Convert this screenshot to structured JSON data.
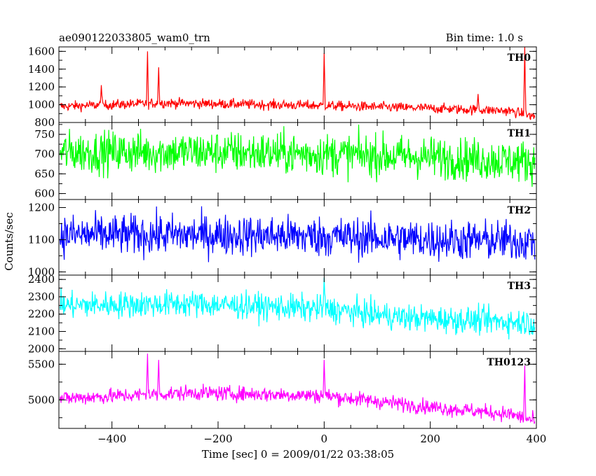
{
  "header": {
    "left_title": "ae090122033805_wam0_trn",
    "right_title": "Bin time: 1.0 s"
  },
  "ylabel": "Counts/sec",
  "xlabel": "Time [sec] 0 = 2009/01/22 03:38:05",
  "chart_data": {
    "type": "line",
    "x_range": [
      -500,
      400
    ],
    "bin_time_s": 1.0,
    "xticks": [
      -400,
      -200,
      0,
      200,
      400
    ],
    "xtick_labels": [
      "−400",
      "−200",
      "0",
      "200",
      "400"
    ],
    "panels": [
      {
        "label": "TH0",
        "color": "#ff0000",
        "ylim": [
          800,
          1650
        ],
        "yticks": [
          800,
          1000,
          1200,
          1400,
          1600
        ],
        "ytick_labels": [
          "800",
          "1000",
          "1200",
          "1400",
          "1600"
        ],
        "trend": [
          [
            -500,
            980
          ],
          [
            -300,
            1020
          ],
          [
            -100,
            1000
          ],
          [
            0,
            990
          ],
          [
            200,
            960
          ],
          [
            350,
            930
          ],
          [
            400,
            860
          ]
        ],
        "noise": 40,
        "spikes": [
          [
            -420,
            1220
          ],
          [
            -333,
            1600
          ],
          [
            -312,
            1420
          ],
          [
            0,
            1580
          ],
          [
            290,
            1120
          ],
          [
            378,
            1650
          ]
        ]
      },
      {
        "label": "TH1",
        "color": "#00ff00",
        "ylim": [
          585,
          780
        ],
        "yticks": [
          600,
          650,
          700,
          750
        ],
        "ytick_labels": [
          "600",
          "650",
          "700",
          "750"
        ],
        "trend": [
          [
            -500,
            705
          ],
          [
            -200,
            705
          ],
          [
            0,
            700
          ],
          [
            200,
            692
          ],
          [
            400,
            680
          ]
        ],
        "noise": 38,
        "spikes": []
      },
      {
        "label": "TH2",
        "color": "#0000ff",
        "ylim": [
          990,
          1225
        ],
        "yticks": [
          1000,
          1100,
          1200
        ],
        "ytick_labels": [
          "1000",
          "1100",
          "1200"
        ],
        "trend": [
          [
            -500,
            1115
          ],
          [
            -200,
            1115
          ],
          [
            0,
            1110
          ],
          [
            200,
            1100
          ],
          [
            400,
            1095
          ]
        ],
        "noise": 45,
        "spikes": []
      },
      {
        "label": "TH3",
        "color": "#00ffff",
        "ylim": [
          1985,
          2425
        ],
        "yticks": [
          2000,
          2100,
          2200,
          2300,
          2400
        ],
        "ytick_labels": [
          "2000",
          "2100",
          "2200",
          "2300",
          "2400"
        ],
        "trend": [
          [
            -500,
            2250
          ],
          [
            -250,
            2260
          ],
          [
            0,
            2230
          ],
          [
            150,
            2180
          ],
          [
            400,
            2150
          ]
        ],
        "noise": 55,
        "spikes": [
          [
            0,
            2410
          ]
        ]
      },
      {
        "label": "TH0123",
        "color": "#ff00ff",
        "ylim": [
          4600,
          5680
        ],
        "yticks": [
          5000,
          5500
        ],
        "ytick_labels": [
          "5000",
          "5500"
        ],
        "trend": [
          [
            -500,
            5020
          ],
          [
            -250,
            5100
          ],
          [
            0,
            5060
          ],
          [
            200,
            4900
          ],
          [
            350,
            4800
          ],
          [
            400,
            4700
          ]
        ],
        "noise": 75,
        "spikes": [
          [
            -333,
            5650
          ],
          [
            -312,
            5560
          ],
          [
            0,
            5560
          ],
          [
            378,
            5480
          ]
        ]
      }
    ]
  }
}
